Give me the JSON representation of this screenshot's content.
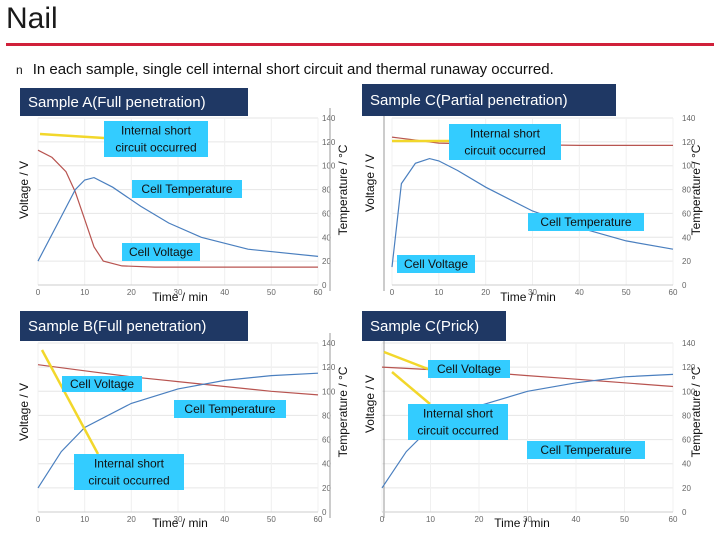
{
  "slide": {
    "title": "Nail",
    "bullet": "In each sample, single cell internal short circuit and thermal runaway occurred.",
    "bullet_marker": "n"
  },
  "colors": {
    "title_rule": "#d0203a",
    "panel_header_bg": "#1f3864",
    "callout_bg": "#33ccff",
    "voltage_line": "#b85450",
    "temperature_line": "#4a7fbf",
    "arrow": "#f2d72b"
  },
  "chart_data": [
    {
      "id": "A",
      "type": "line",
      "title": "Sample A(Full penetration)",
      "xlabel": "Time / min",
      "ylabel_left": "Voltage / V",
      "ylabel_right": "Temperature / °C",
      "xlim": [
        0,
        60
      ],
      "ylim_right": [
        0,
        140
      ],
      "x_ticks": [
        "0",
        "10",
        "20",
        "30",
        "40",
        "50",
        "60"
      ],
      "y_ticks_right": [
        "0",
        "20",
        "40",
        "60",
        "80",
        "100",
        "120",
        "140"
      ],
      "series": [
        {
          "name": "Cell Voltage",
          "x": [
            0,
            3,
            6,
            8,
            10,
            12,
            14,
            18,
            25,
            60
          ],
          "y": [
            113,
            107,
            95,
            78,
            55,
            32,
            20,
            16,
            15,
            15
          ]
        },
        {
          "name": "Cell Temperature",
          "x": [
            0,
            4,
            8,
            10,
            12,
            16,
            22,
            28,
            35,
            45,
            60
          ],
          "y": [
            20,
            50,
            80,
            88,
            90,
            82,
            66,
            52,
            40,
            30,
            24
          ]
        }
      ],
      "annotations": [
        "Internal short\ncircuit occurred",
        "Cell Temperature",
        "Cell Voltage"
      ]
    },
    {
      "id": "C1",
      "type": "line",
      "title": "Sample C(Partial penetration)",
      "xlabel": "Time / min",
      "ylabel_left": "Voltage / V",
      "ylabel_right": "Temperature / °C",
      "xlim": [
        0,
        60
      ],
      "ylim_right": [
        0,
        140
      ],
      "x_ticks": [
        "0",
        "10",
        "20",
        "30",
        "40",
        "50",
        "60"
      ],
      "y_ticks_right": [
        "0",
        "20",
        "40",
        "60",
        "80",
        "100",
        "120",
        "140"
      ],
      "series": [
        {
          "name": "Cell Voltage",
          "x": [
            0,
            2,
            4,
            6,
            8,
            10,
            20,
            40,
            60
          ],
          "y": [
            124,
            123,
            122,
            121,
            120,
            119,
            118,
            117,
            117
          ]
        },
        {
          "name": "Cell Temperature",
          "x": [
            0,
            2,
            5,
            8,
            10,
            14,
            20,
            30,
            40,
            50,
            60
          ],
          "y": [
            15,
            85,
            102,
            106,
            104,
            96,
            82,
            62,
            48,
            37,
            30
          ]
        }
      ],
      "annotations": [
        "Internal short\ncircuit occurred",
        "Cell Temperature",
        "Cell Voltage"
      ]
    },
    {
      "id": "B",
      "type": "line",
      "title": "Sample B(Full penetration)",
      "xlabel": "Time / min",
      "ylabel_left": "Voltage / V",
      "ylabel_right": "Temperature / °C",
      "xlim": [
        0,
        60
      ],
      "ylim_right": [
        0,
        140
      ],
      "x_ticks": [
        "0",
        "10",
        "20",
        "30",
        "40",
        "50",
        "60"
      ],
      "y_ticks_right": [
        "0",
        "20",
        "40",
        "60",
        "80",
        "100",
        "120",
        "140"
      ],
      "series": [
        {
          "name": "Cell Voltage",
          "x": [
            0,
            10,
            20,
            30,
            40,
            50,
            60
          ],
          "y": [
            122,
            117,
            112,
            108,
            104,
            100,
            97
          ]
        },
        {
          "name": "Cell Temperature",
          "x": [
            0,
            5,
            10,
            20,
            30,
            40,
            50,
            60
          ],
          "y": [
            20,
            50,
            70,
            90,
            102,
            109,
            113,
            115
          ]
        }
      ],
      "annotations": [
        "Cell Voltage",
        "Cell Temperature",
        "Internal short\ncircuit occurred"
      ]
    },
    {
      "id": "C2",
      "type": "line",
      "title": "Sample C(Prick)",
      "xlabel": "Time / min",
      "ylabel_left": "Voltage / V",
      "ylabel_right": "Temperature / °C",
      "xlim": [
        0,
        60
      ],
      "ylim_right": [
        0,
        140
      ],
      "x_ticks": [
        "0",
        "10",
        "20",
        "30",
        "40",
        "50",
        "60"
      ],
      "y_ticks_right": [
        "0",
        "20",
        "40",
        "60",
        "80",
        "100",
        "120",
        "140"
      ],
      "series": [
        {
          "name": "Cell Voltage",
          "x": [
            0,
            10,
            20,
            30,
            40,
            50,
            60
          ],
          "y": [
            120,
            118,
            116,
            113,
            110,
            107,
            104
          ]
        },
        {
          "name": "Cell Temperature",
          "x": [
            0,
            5,
            10,
            20,
            30,
            40,
            50,
            60
          ],
          "y": [
            20,
            50,
            70,
            88,
            100,
            107,
            112,
            114
          ]
        }
      ],
      "annotations": [
        "Cell Voltage",
        "Internal short\ncircuit occurred",
        "Cell Temperature"
      ]
    }
  ]
}
